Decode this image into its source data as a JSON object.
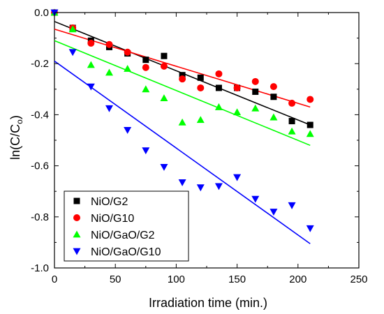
{
  "chart_data": {
    "type": "scatter",
    "xlabel": "Irradiation time (min.)",
    "ylabel": "ln(C/C",
    "ylabel_sub": "o",
    "ylabel_close": ")",
    "xlim": [
      0,
      250
    ],
    "ylim": [
      -1.0,
      0.0
    ],
    "xticks": [
      0,
      50,
      100,
      150,
      200,
      250
    ],
    "yticks": [
      0.0,
      -0.2,
      -0.4,
      -0.6,
      -0.8,
      -1.0
    ],
    "xtick_labels": [
      "0",
      "50",
      "100",
      "150",
      "200",
      "250"
    ],
    "ytick_labels": [
      "0.0",
      "-0.2",
      "-0.4",
      "-0.6",
      "-0.8",
      "-1.0"
    ],
    "grid": false,
    "legend_position": "bottom-left",
    "series": [
      {
        "name": "NiO/G2",
        "color": "#000000",
        "marker": "square",
        "x": [
          0,
          15,
          30,
          45,
          60,
          75,
          90,
          105,
          120,
          135,
          150,
          165,
          180,
          195,
          210
        ],
        "y": [
          0.0,
          -0.06,
          -0.11,
          -0.135,
          -0.16,
          -0.185,
          -0.17,
          -0.245,
          -0.255,
          -0.295,
          -0.295,
          -0.31,
          -0.33,
          -0.425,
          -0.44
        ],
        "fit": [
          [
            0,
            -0.035
          ],
          [
            210,
            -0.44
          ]
        ]
      },
      {
        "name": "NiO/G10",
        "color": "#ff0000",
        "marker": "circle",
        "x": [
          0,
          15,
          30,
          45,
          60,
          75,
          90,
          105,
          120,
          135,
          150,
          165,
          180,
          195,
          210
        ],
        "y": [
          0.0,
          -0.06,
          -0.12,
          -0.125,
          -0.155,
          -0.215,
          -0.21,
          -0.26,
          -0.295,
          -0.24,
          -0.295,
          -0.27,
          -0.29,
          -0.355,
          -0.34
        ],
        "fit": [
          [
            0,
            -0.065
          ],
          [
            210,
            -0.37
          ]
        ]
      },
      {
        "name": "NiO/GaO/G2",
        "color": "#00ff00",
        "marker": "triangle-up",
        "x": [
          0,
          15,
          30,
          45,
          60,
          75,
          90,
          105,
          120,
          135,
          150,
          165,
          180,
          195,
          210
        ],
        "y": [
          0.0,
          -0.065,
          -0.205,
          -0.235,
          -0.22,
          -0.3,
          -0.335,
          -0.43,
          -0.42,
          -0.37,
          -0.39,
          -0.375,
          -0.41,
          -0.465,
          -0.475
        ],
        "fit": [
          [
            0,
            -0.11
          ],
          [
            210,
            -0.52
          ]
        ]
      },
      {
        "name": "NiO/GaO/G10",
        "color": "#0000ff",
        "marker": "triangle-down",
        "x": [
          0,
          15,
          30,
          45,
          60,
          75,
          90,
          105,
          120,
          135,
          150,
          165,
          180,
          195,
          210
        ],
        "y": [
          0.0,
          -0.155,
          -0.29,
          -0.375,
          -0.46,
          -0.54,
          -0.605,
          -0.665,
          -0.685,
          -0.68,
          -0.645,
          -0.73,
          -0.78,
          -0.755,
          -0.845
        ],
        "fit": [
          [
            0,
            -0.19
          ],
          [
            210,
            -0.905
          ]
        ]
      }
    ]
  }
}
